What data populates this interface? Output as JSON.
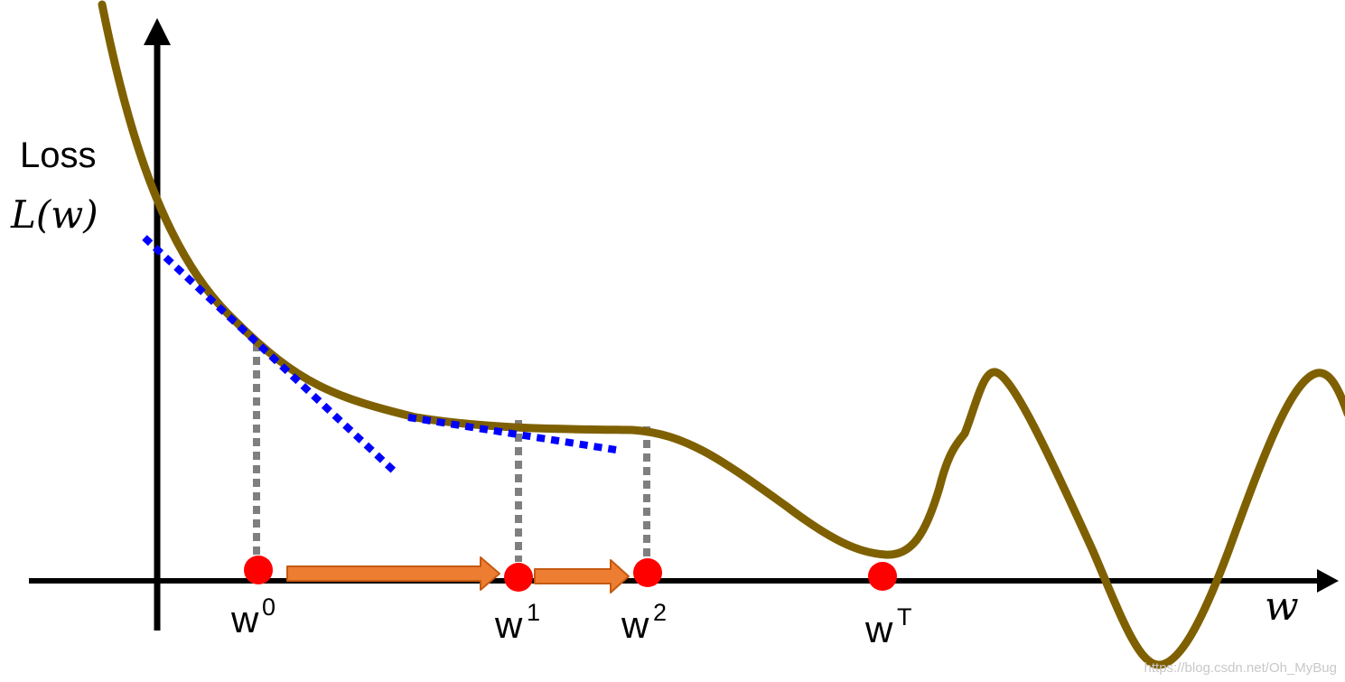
{
  "y_axis": {
    "label_line1": "Loss",
    "label_line2": "L(w)"
  },
  "x_axis": {
    "label": "w"
  },
  "points": [
    {
      "base": "w",
      "sup": "0"
    },
    {
      "base": "w",
      "sup": "1"
    },
    {
      "base": "w",
      "sup": "2"
    },
    {
      "base": "w",
      "sup": "T"
    }
  ],
  "watermark": "https://blog.csdn.net/Oh_MyBug",
  "colors": {
    "curve": "#7f6000",
    "axes": "#000000",
    "tangent": "#0000ff",
    "guide": "#7f7f7f",
    "point": "#ff0000",
    "arrow_fill": "#ed7d31",
    "arrow_stroke": "#c55a11",
    "watermark": "#c8c8c8"
  }
}
